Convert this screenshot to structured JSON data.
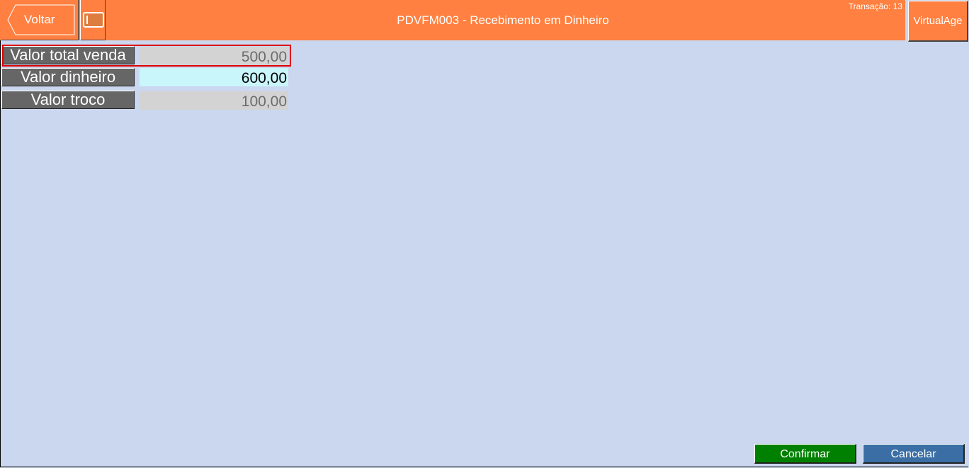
{
  "header": {
    "back_label": "Voltar",
    "title": "PDVFM003 - Recebimento em Dinheiro",
    "transaction": "Transação: 13",
    "brand_button": "VirtualAge"
  },
  "fields": [
    {
      "label": "Valor total venda",
      "value": "500,00"
    },
    {
      "label": "Valor dinheiro",
      "value": "600,00"
    },
    {
      "label": "Valor troco",
      "value": "100,00"
    }
  ],
  "footer": {
    "confirm": "Confirmar",
    "cancel": "Cancelar"
  },
  "colors": {
    "header": "#ff8040",
    "background": "#cbd7ee",
    "confirm": "#008000",
    "cancel": "#3a6ea5"
  }
}
